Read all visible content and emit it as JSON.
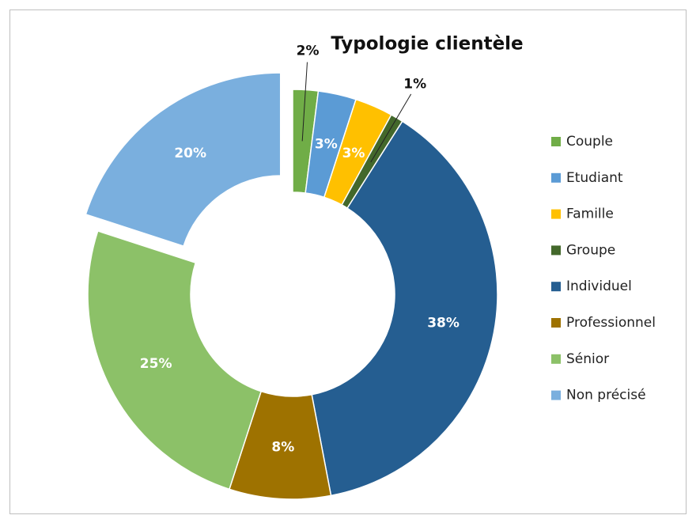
{
  "chart_data": {
    "type": "donut",
    "title": "Typologie clientèle",
    "categories": [
      "Couple",
      "Etudiant",
      "Famille",
      "Groupe",
      "Individuel",
      "Professionnel",
      "Sénior",
      "Non précisé"
    ],
    "values": [
      2,
      3,
      3,
      1,
      38,
      8,
      25,
      20
    ],
    "value_labels": [
      "2%",
      "3%",
      "3%",
      "1%",
      "38%",
      "8%",
      "25%",
      "20%"
    ],
    "colors": [
      "#70ad47",
      "#5b9bd5",
      "#ffc000",
      "#43682b",
      "#255e91",
      "#9e7200",
      "#8cc168",
      "#7aafde"
    ],
    "legend": "right"
  }
}
